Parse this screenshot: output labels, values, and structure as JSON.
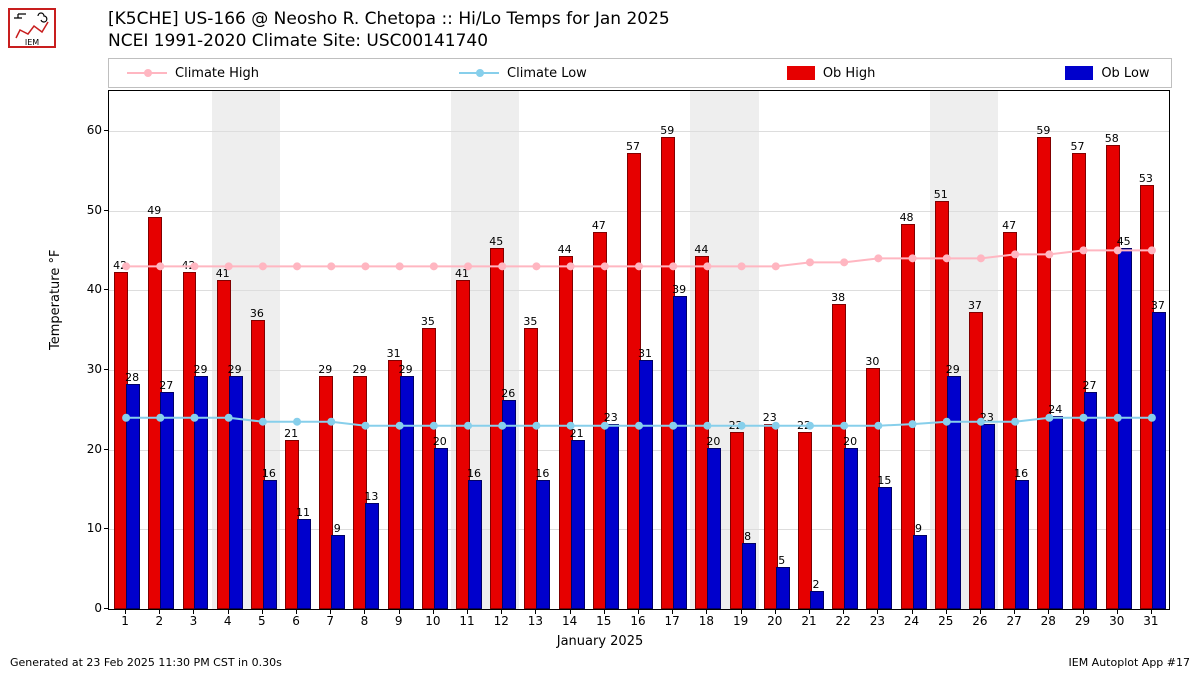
{
  "title_line1": "[K5CHE] US-166 @ Neosho R. Chetopa :: Hi/Lo Temps for Jan 2025",
  "title_line2": "NCEI 1991-2020 Climate Site: USC00141740",
  "legend": {
    "climate_high": "Climate High",
    "climate_low": "Climate Low",
    "ob_high": "Ob High",
    "ob_low": "Ob Low"
  },
  "colors": {
    "climate_high": "#ffb6c1",
    "climate_low": "#87cfeb",
    "ob_high": "#e60000",
    "ob_low": "#0000cc",
    "weekend": "#eeeeee",
    "grid": "#dddddd",
    "border": "#000000"
  },
  "axes": {
    "ylabel": "Temperature °F",
    "xlabel": "January 2025",
    "y_min": 0,
    "y_max": 65,
    "y_ticks": [
      0,
      10,
      20,
      30,
      40,
      50,
      60
    ],
    "days": 31
  },
  "weekends": [
    [
      4,
      5
    ],
    [
      11,
      12
    ],
    [
      18,
      19
    ],
    [
      25,
      26
    ]
  ],
  "ob_high": [
    42,
    49,
    42,
    41,
    36,
    21,
    29,
    29,
    31,
    35,
    41,
    45,
    35,
    44,
    47,
    57,
    59,
    44,
    22,
    23,
    22,
    38,
    30,
    48,
    51,
    37,
    47,
    59,
    57,
    58,
    53
  ],
  "ob_low": [
    28,
    27,
    29,
    29,
    16,
    11,
    9,
    13,
    29,
    20,
    16,
    26,
    16,
    21,
    23,
    31,
    39,
    20,
    8,
    5,
    2,
    20,
    15,
    9,
    29,
    23,
    16,
    24,
    27,
    45,
    37
  ],
  "climate_high": [
    43,
    43,
    43,
    43,
    43,
    43,
    43,
    43,
    43,
    43,
    43,
    43,
    43,
    43,
    43,
    43,
    43,
    43,
    43,
    43,
    43.5,
    43.5,
    44,
    44,
    44,
    44,
    44.5,
    44.5,
    45,
    45,
    45
  ],
  "climate_low": [
    24,
    24,
    24,
    24,
    23.5,
    23.5,
    23.5,
    23,
    23,
    23,
    23,
    23,
    23,
    23,
    23,
    23,
    23,
    23,
    23,
    23,
    23,
    23,
    23,
    23.2,
    23.5,
    23.5,
    23.5,
    24,
    24,
    24,
    24
  ],
  "footer_left": "Generated at 23 Feb 2025 11:30 PM CST in 0.30s",
  "footer_right": "IEM Autoplot App #17"
}
